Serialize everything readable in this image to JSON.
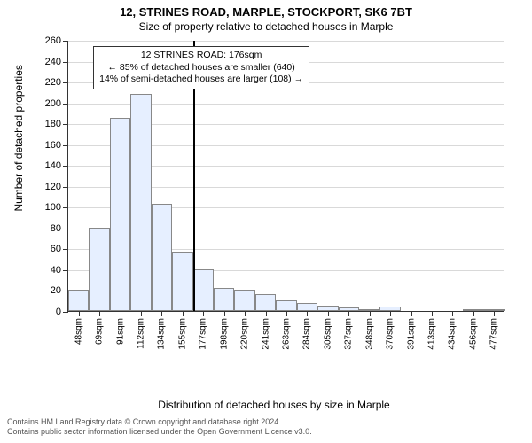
{
  "title": {
    "line1": "12, STRINES ROAD, MARPLE, STOCKPORT, SK6 7BT",
    "line2": "Size of property relative to detached houses in Marple"
  },
  "chart": {
    "type": "histogram",
    "y_axis": {
      "label": "Number of detached properties",
      "min": 0,
      "max": 260,
      "tick_step": 20,
      "ticks": [
        0,
        20,
        40,
        60,
        80,
        100,
        120,
        140,
        160,
        180,
        200,
        220,
        240,
        260
      ]
    },
    "x_axis": {
      "label": "Distribution of detached houses by size in Marple",
      "categories": [
        "48sqm",
        "69sqm",
        "91sqm",
        "112sqm",
        "134sqm",
        "155sqm",
        "177sqm",
        "198sqm",
        "220sqm",
        "241sqm",
        "263sqm",
        "284sqm",
        "305sqm",
        "327sqm",
        "348sqm",
        "370sqm",
        "391sqm",
        "413sqm",
        "434sqm",
        "456sqm",
        "477sqm"
      ]
    },
    "bars": {
      "values": [
        20,
        80,
        185,
        208,
        103,
        57,
        40,
        22,
        20,
        16,
        10,
        8,
        5,
        3,
        2,
        4,
        0,
        0,
        0,
        2,
        1
      ],
      "fill_color": "#e6efff",
      "border_color": "#888888"
    },
    "reference_line": {
      "position_category_index": 6,
      "color": "#000000"
    },
    "annotation": {
      "line1": "12 STRINES ROAD: 176sqm",
      "line2": "← 85% of detached houses are smaller (640)",
      "line3": "14% of semi-detached houses are larger (108) →"
    },
    "grid_color": "#d9d9d9",
    "background_color": "#ffffff"
  },
  "footer": {
    "line1": "Contains HM Land Registry data © Crown copyright and database right 2024.",
    "line2": "Contains public sector information licensed under the Open Government Licence v3.0."
  }
}
